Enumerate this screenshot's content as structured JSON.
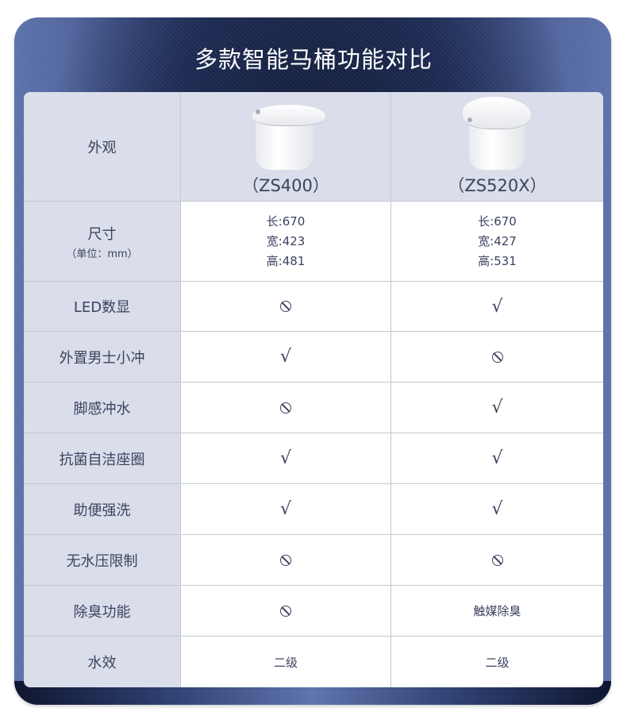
{
  "title": "多款智能马桶功能对比",
  "products": [
    {
      "model": "（ZS400）"
    },
    {
      "model": "（ZS520X）"
    }
  ],
  "rows": {
    "appearance": {
      "label": "外观"
    },
    "size": {
      "label": "尺寸",
      "unit": "（单位：mm）",
      "p1": [
        "长:670",
        "宽:423",
        "高:481"
      ],
      "p2": [
        "长:670",
        "宽:427",
        "高:531"
      ]
    },
    "features": [
      {
        "label": "LED数显",
        "p1": "no",
        "p2": "yes"
      },
      {
        "label": "外置男士小冲",
        "p1": "yes",
        "p2": "no"
      },
      {
        "label": "脚感冲水",
        "p1": "no",
        "p2": "yes"
      },
      {
        "label": "抗菌自洁座圈",
        "p1": "yes",
        "p2": "yes"
      },
      {
        "label": "助便强洗",
        "p1": "yes",
        "p2": "yes"
      },
      {
        "label": "无水压限制",
        "p1": "no",
        "p2": "no"
      },
      {
        "label": "除臭功能",
        "p1": "no",
        "p2": "触媒除臭"
      },
      {
        "label": "水效",
        "p1": "二级",
        "p2": "二级"
      }
    ]
  },
  "symbols": {
    "yes": "√",
    "yes_icon": "check-icon",
    "no_icon": "prohibited-icon"
  },
  "colors": {
    "label_bg": "#d9deea",
    "text": "#3d4260",
    "frame_dark": "#1d2a52",
    "frame_light": "#5c72ab"
  }
}
